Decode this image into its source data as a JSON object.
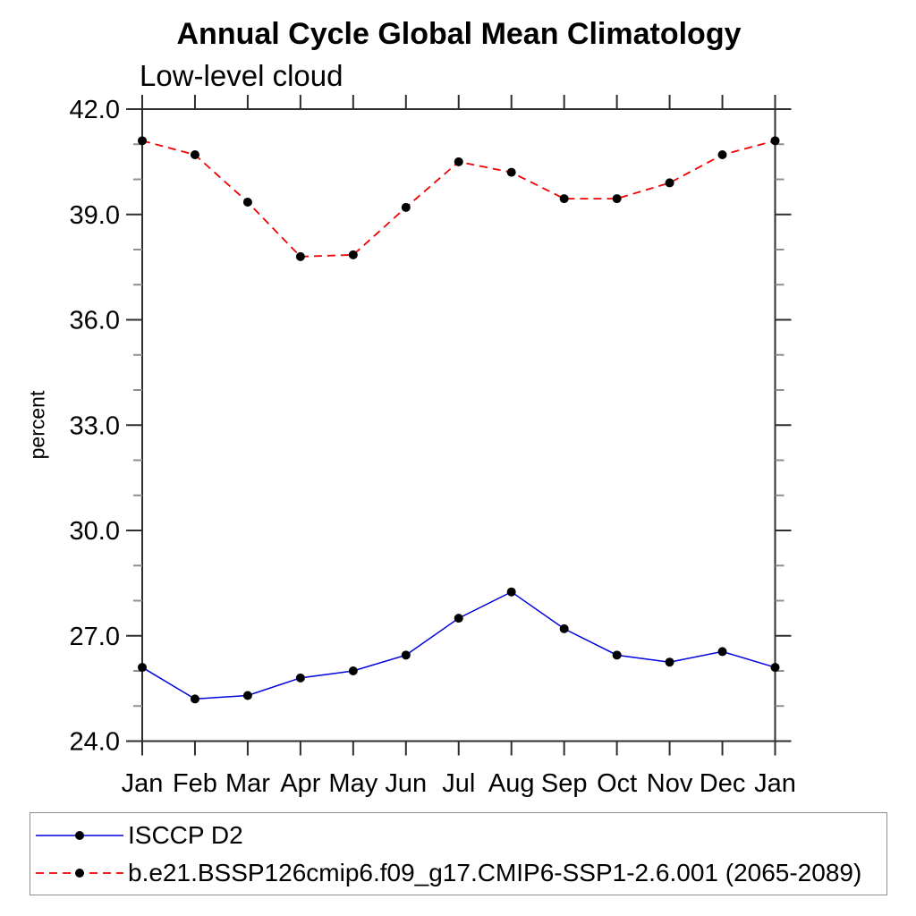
{
  "header": {
    "title": "Annual Cycle Global Mean Climatology",
    "subtitle": "Low-level cloud"
  },
  "chart_data": {
    "type": "line",
    "title": "Annual Cycle Global Mean Climatology",
    "subtitle": "Low-level cloud",
    "xlabel": "",
    "ylabel": "percent",
    "categories": [
      "Jan",
      "Feb",
      "Mar",
      "Apr",
      "May",
      "Jun",
      "Jul",
      "Aug",
      "Sep",
      "Oct",
      "Nov",
      "Dec",
      "Jan"
    ],
    "ylim": [
      24.0,
      42.0
    ],
    "y_major_ticks": [
      24.0,
      27.0,
      30.0,
      33.0,
      36.0,
      39.0,
      42.0
    ],
    "y_tick_labels": [
      "24.0",
      "27.0",
      "30.0",
      "33.0",
      "36.0",
      "39.0",
      "42.0"
    ],
    "y_minor_step": 1.0,
    "grid": false,
    "legend_position": "bottom",
    "axis_color": "#2e2e2e",
    "minor_tick_color": "#8f8f8f",
    "series": [
      {
        "name": "ISCCP D2",
        "color": "#0000e0",
        "style": "solid",
        "marker": "circle",
        "marker_color": "#000000",
        "values": [
          26.1,
          25.2,
          25.3,
          25.8,
          26.0,
          26.45,
          27.5,
          28.25,
          27.2,
          26.45,
          26.25,
          26.55,
          26.1
        ]
      },
      {
        "name": "b.e21.BSSP126cmip6.f09_g17.CMIP6-SSP1-2.6.001 (2065-2089)",
        "color": "#f00000",
        "style": "dashed",
        "marker": "circle",
        "marker_color": "#000000",
        "values": [
          41.1,
          40.7,
          39.35,
          37.8,
          37.85,
          39.2,
          40.5,
          40.2,
          39.45,
          39.45,
          39.9,
          40.7,
          41.1
        ]
      }
    ]
  }
}
